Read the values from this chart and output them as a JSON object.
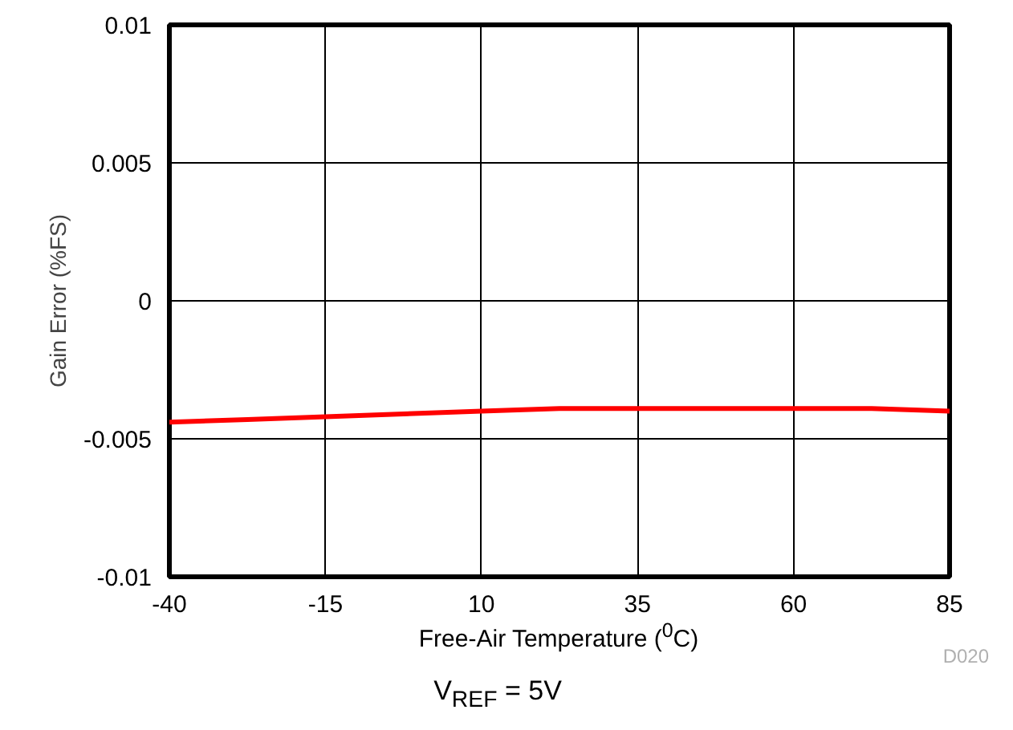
{
  "chart_data": {
    "type": "line",
    "xlabel": "Free-Air Temperature ($^{0}$C)",
    "ylabel": "Gain Error (%FS)",
    "x": [
      -40,
      -27.5,
      -15,
      -2.5,
      10,
      22.5,
      35,
      47.5,
      60,
      72.5,
      85
    ],
    "series": [
      {
        "color": "#ff0000",
        "values": [
          -0.0044,
          -0.0043,
          -0.0042,
          -0.0041,
          -0.004,
          -0.0039,
          -0.0039,
          -0.0039,
          -0.0039,
          -0.0039,
          -0.004
        ]
      }
    ],
    "xlim": [
      -40,
      85
    ],
    "xticks": [
      -40,
      -15,
      10,
      35,
      60,
      85
    ],
    "ylim": [
      -0.01,
      0.01
    ],
    "yticks": [
      {
        "value": -0.01,
        "label": "-0.01"
      },
      {
        "value": -0.005,
        "label": "-0.005"
      },
      0,
      {
        "value": 0.005,
        "label": "0.005"
      },
      {
        "value": 0.01,
        "label": "0.01"
      }
    ],
    "grid": true,
    "line_style": "solid",
    "marker": "none",
    "annotations": [
      "D020",
      "V$_{REF}$ = 5V"
    ]
  }
}
